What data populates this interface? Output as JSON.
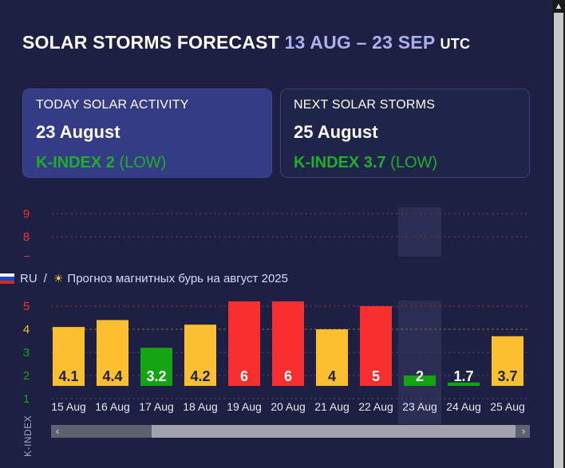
{
  "header": {
    "title": "SOLAR STORMS FORECAST",
    "range": "13 AUG – 23 SEP",
    "timezone": "UTC"
  },
  "today_card": {
    "label": "TODAY SOLAR ACTIVITY",
    "date": "23 August",
    "kindex_label": "K-INDEX 2",
    "level": "(LOW)"
  },
  "next_card": {
    "label": "NEXT SOLAR STORMS",
    "date": "25 August",
    "kindex_label": "K-INDEX 3.7",
    "level": "(LOW)"
  },
  "language_bar": {
    "lang": "RU",
    "separator": "/",
    "link_text": "Прогноз магнитных бурь на август 2025"
  },
  "colors": {
    "low": "#fcbf2f",
    "quiet": "#13a313",
    "storm": "#f72f2f",
    "background": "#1d2042",
    "accent": "#aab0ee"
  },
  "chart_data": {
    "type": "bar",
    "ylabel": "K-INDEX",
    "yticks": [
      "1",
      "2",
      "3",
      "4",
      "5",
      "8",
      "9"
    ],
    "categories": [
      "15 Aug",
      "16 Aug",
      "17 Aug",
      "18 Aug",
      "19 Aug",
      "20 Aug",
      "21 Aug",
      "22 Aug",
      "23 Aug",
      "24 Aug",
      "25 Aug"
    ],
    "values": [
      4.1,
      4.4,
      3.2,
      4.2,
      6,
      6,
      4,
      5,
      2,
      1.7,
      3.7
    ],
    "labels": [
      "4.1",
      "4.4",
      "3.2",
      "4.2",
      "6",
      "6",
      "4",
      "5",
      "2",
      "1.7",
      "3.7"
    ],
    "highlight": "23 Aug"
  }
}
